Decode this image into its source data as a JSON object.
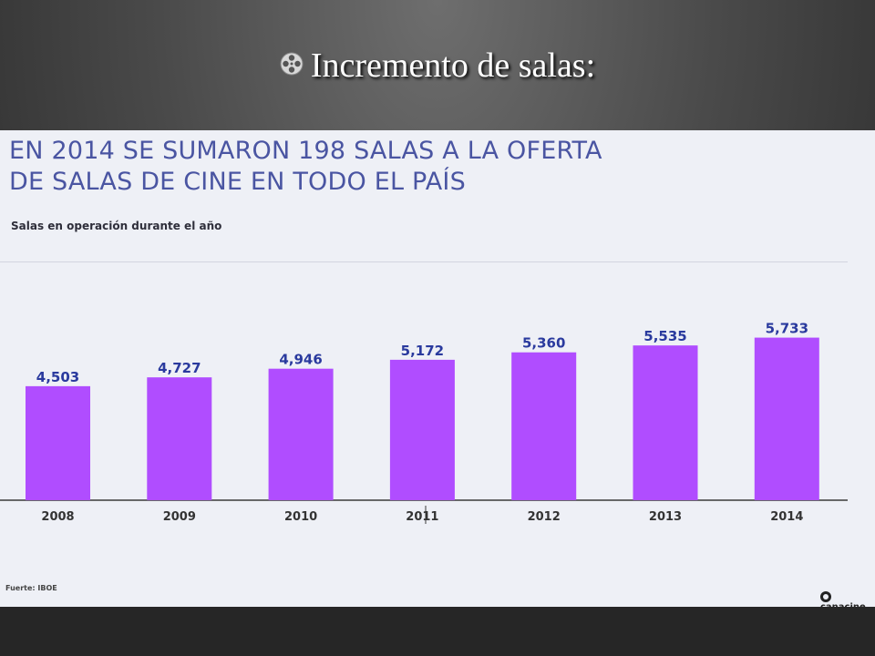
{
  "slide": {
    "title": "Incremento de salas:",
    "bullet_icon": "film-reel-icon"
  },
  "infographic": {
    "headline_line1": "EN 2014 SE SUMARON 198 SALAS A LA OFERTA",
    "headline_line2": "DE SALAS DE CINE EN TODO EL PAÍS",
    "subtitle": "Salas en operación durante el año",
    "source": "Fuerte: IBOE",
    "brand": "canacine",
    "colors": {
      "bar": "#b04dff",
      "label": "#2a3a9e",
      "headline": "#4a55a2",
      "background": "#eef0f6"
    }
  },
  "chart_data": {
    "type": "bar",
    "title": "Salas en operación durante el año",
    "categories": [
      "2008",
      "2009",
      "2010",
      "2011",
      "2012",
      "2013",
      "2014"
    ],
    "values": [
      4503,
      4727,
      4946,
      5172,
      5360,
      5535,
      5733
    ],
    "value_labels": [
      "4,503",
      "4,727",
      "4,946",
      "5,172",
      "5,360",
      "5,535",
      "5,733"
    ],
    "ylim": [
      0,
      7000
    ],
    "grid": false,
    "legend": "none"
  }
}
